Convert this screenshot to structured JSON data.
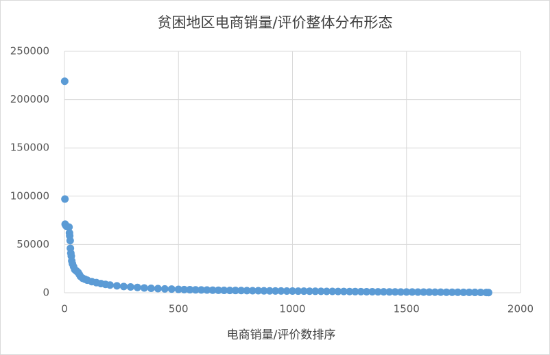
{
  "chart_data": {
    "type": "scatter",
    "title": "贫困地区电商销量/评价整体分布形态",
    "x_label": "电商销量/评价数排序",
    "color": "#5b9bd5",
    "grid": true,
    "xlim": [
      0,
      2000
    ],
    "xticks": [
      0,
      500,
      1000,
      1500,
      2000
    ],
    "ylim": [
      0,
      250000
    ],
    "yticks": [
      0,
      50000,
      100000,
      150000,
      200000,
      250000
    ],
    "x": [
      1,
      2,
      3,
      5,
      8,
      20,
      22,
      23,
      25,
      26,
      28,
      30,
      32,
      35,
      40,
      45,
      50,
      55,
      60,
      65,
      70,
      80,
      90,
      100,
      120,
      140,
      160,
      180,
      200,
      230,
      260,
      290,
      320,
      350,
      380,
      410,
      440,
      470,
      500,
      525,
      550,
      575,
      600,
      625,
      650,
      675,
      700,
      725,
      750,
      775,
      800,
      825,
      850,
      875,
      900,
      925,
      950,
      975,
      1000,
      1025,
      1050,
      1075,
      1100,
      1125,
      1150,
      1175,
      1200,
      1225,
      1250,
      1275,
      1300,
      1325,
      1350,
      1375,
      1400,
      1425,
      1450,
      1475,
      1500,
      1525,
      1550,
      1575,
      1600,
      1625,
      1650,
      1675,
      1700,
      1725,
      1750,
      1775,
      1800,
      1825,
      1850,
      1860
    ],
    "values": [
      219000,
      97000,
      71000,
      70000,
      69000,
      68000,
      62000,
      59000,
      54000,
      46000,
      41000,
      38000,
      33000,
      30000,
      27000,
      24000,
      23000,
      22000,
      21000,
      19000,
      17000,
      15000,
      14000,
      13000,
      11500,
      10500,
      9500,
      8700,
      8000,
      7200,
      6500,
      6000,
      5500,
      5000,
      4600,
      4300,
      4000,
      3800,
      3500,
      3300,
      3150,
      3000,
      2900,
      2800,
      2700,
      2600,
      2500,
      2400,
      2350,
      2300,
      2200,
      2150,
      2100,
      2000,
      1950,
      1900,
      1850,
      1800,
      1750,
      1700,
      1650,
      1600,
      1550,
      1500,
      1450,
      1400,
      1350,
      1300,
      1250,
      1200,
      1150,
      1100,
      1050,
      1000,
      950,
      900,
      870,
      840,
      800,
      770,
      740,
      700,
      670,
      640,
      600,
      570,
      540,
      500,
      470,
      430,
      400,
      350,
      300,
      200
    ]
  }
}
